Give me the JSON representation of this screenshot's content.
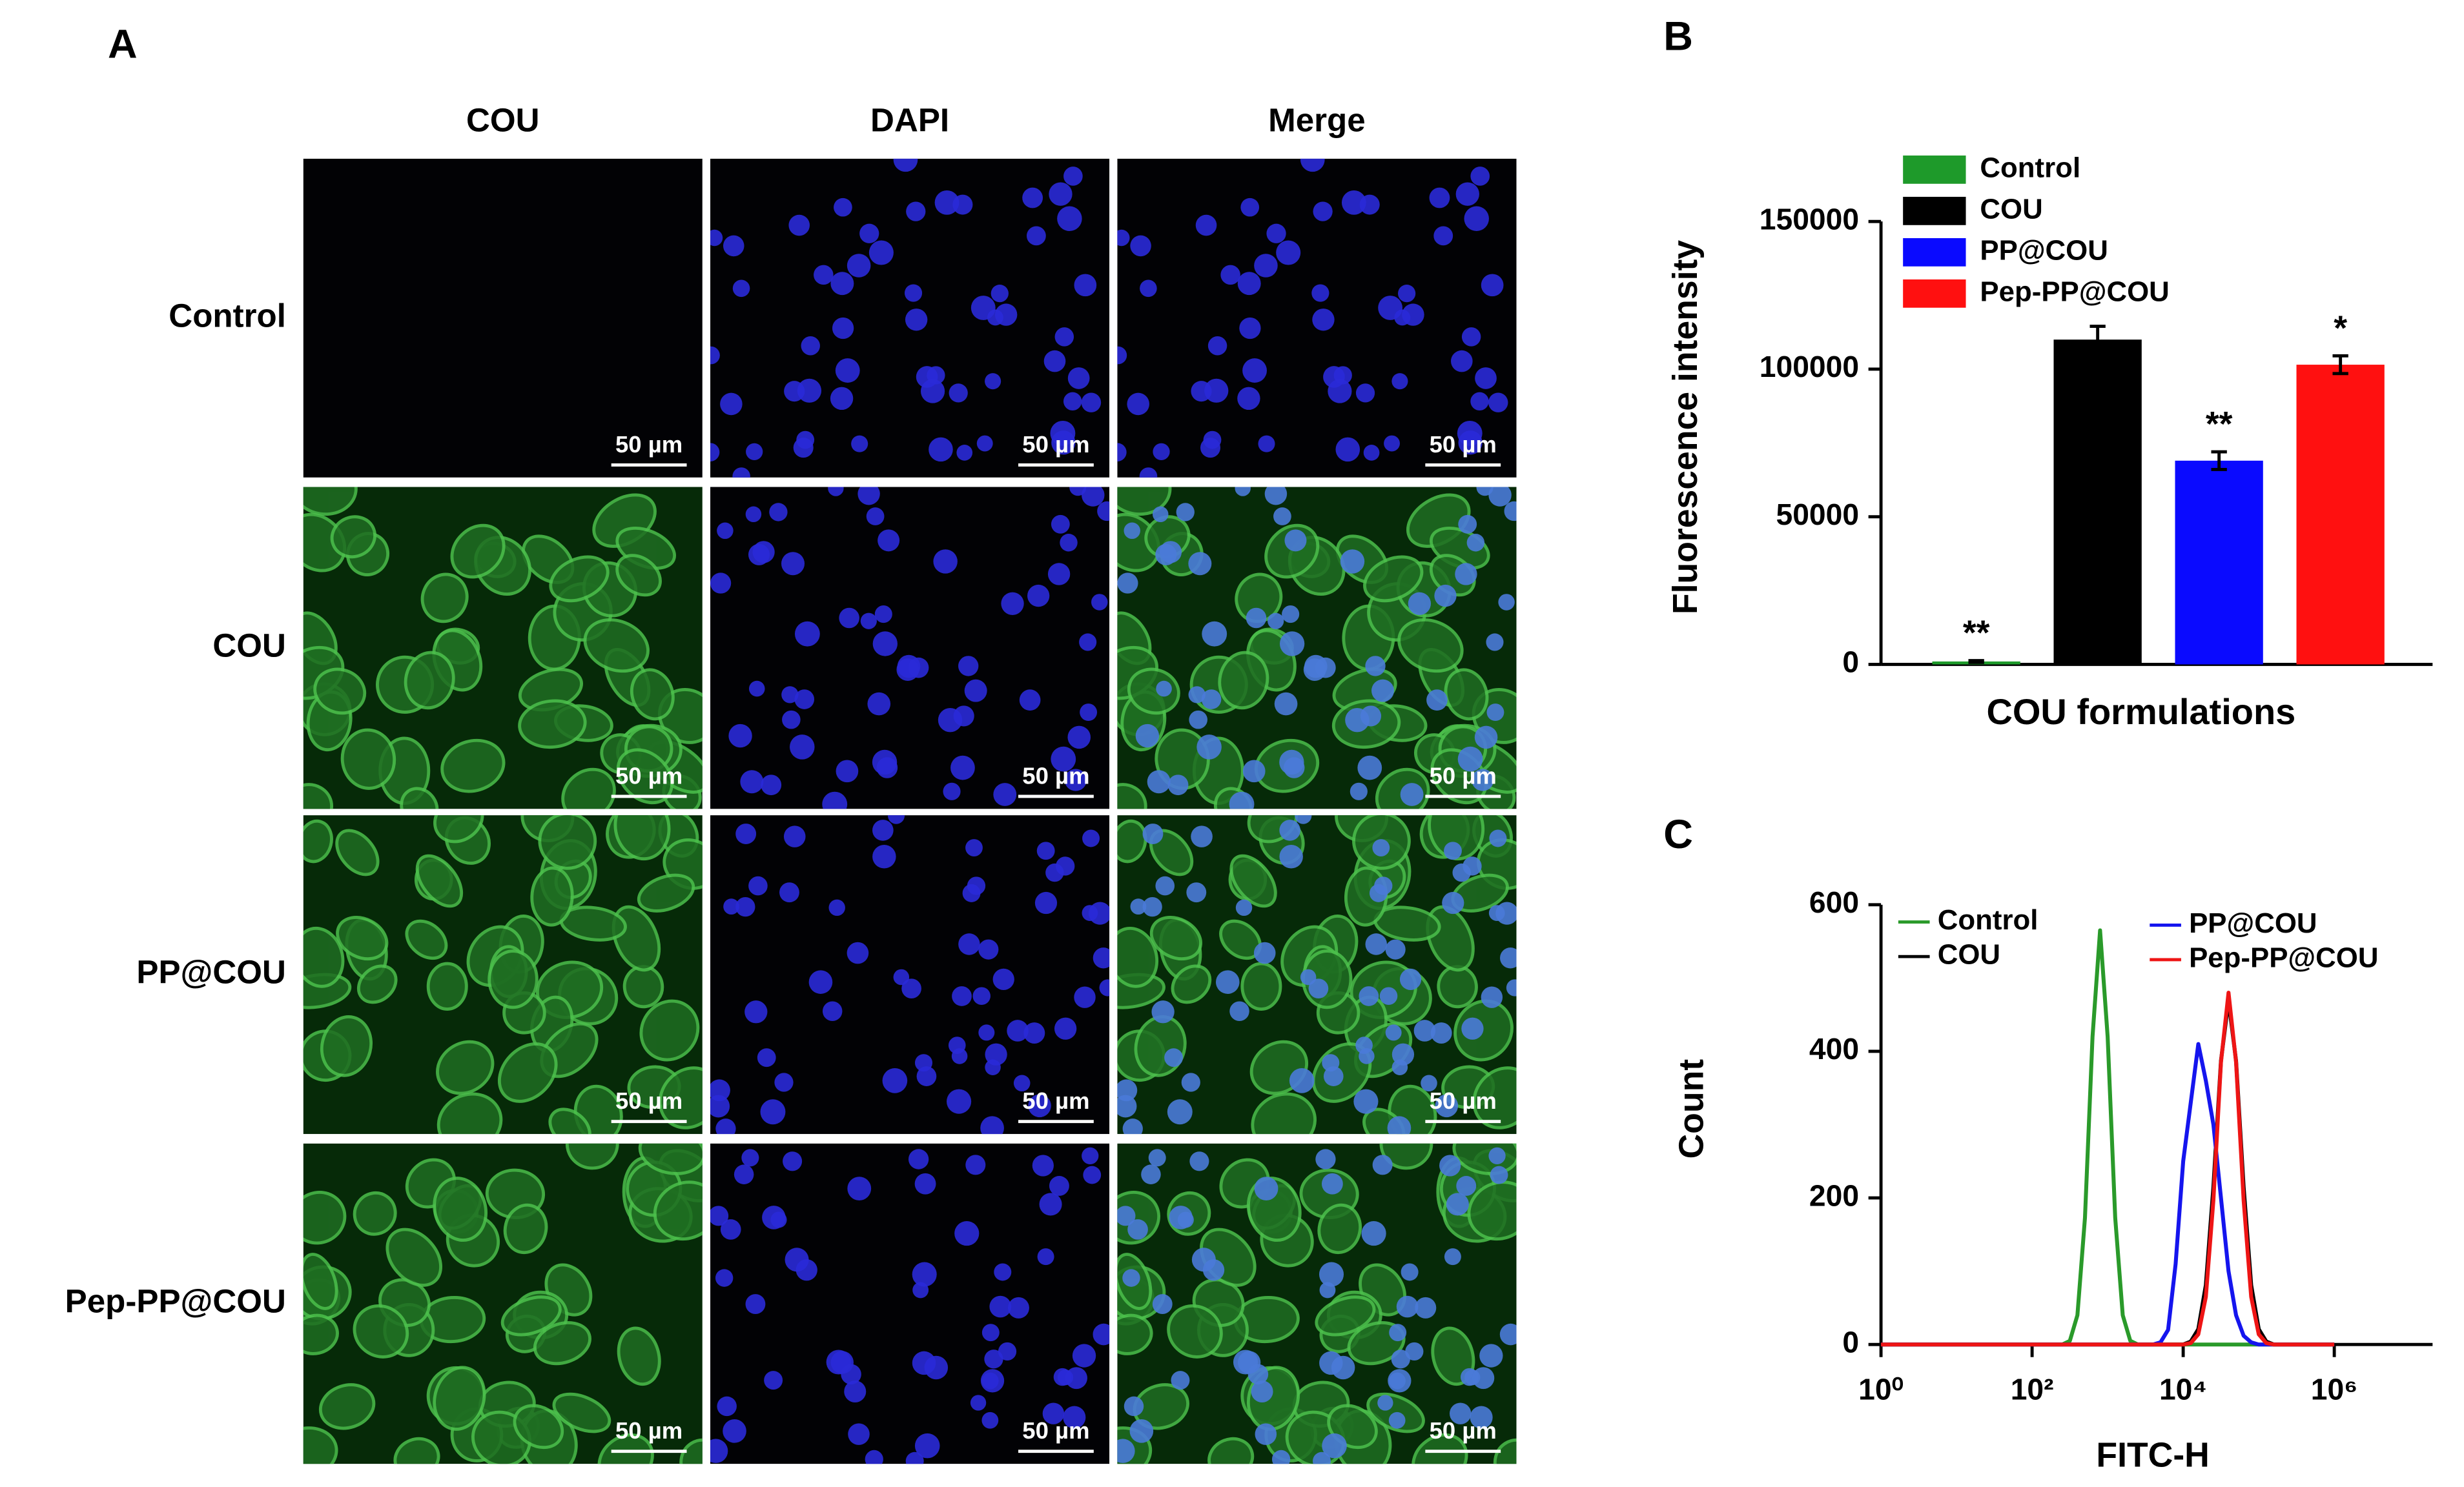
{
  "panel_labels": [
    "A",
    "B",
    "C"
  ],
  "microscopy": {
    "columns": [
      "COU",
      "DAPI",
      "Merge"
    ],
    "rows": [
      "Control",
      "COU",
      "PP@COU",
      "Pep-PP@COU"
    ],
    "scale_bar": "50 µm"
  },
  "chart_data": [
    {
      "type": "bar",
      "ylabel": "Fluorescence intensity",
      "xlabel": "COU formulations",
      "categories": [
        "Control",
        "COU",
        "PP@COU",
        "Pep-PP@COU"
      ],
      "values": [
        1000,
        110000,
        69000,
        101500
      ],
      "errors": [
        300,
        4500,
        3000,
        3000
      ],
      "colors": [
        "#1e9a2a",
        "#000000",
        "#0a0aff",
        "#ff1010"
      ],
      "significance": [
        "**",
        null,
        "**",
        "*"
      ],
      "ylim": [
        0,
        150000
      ],
      "yticks": [
        0,
        50000,
        100000,
        150000
      ],
      "legend": "top-left"
    },
    {
      "type": "line",
      "xlabel": "FITC-H",
      "ylabel": "Count",
      "log_x": true,
      "xlim": [
        1,
        20000000
      ],
      "xticks": [
        {
          "value": 1,
          "label": "10⁰"
        },
        {
          "value": 100,
          "label": "10²"
        },
        {
          "value": 10000,
          "label": "10⁴"
        },
        {
          "value": 1000000,
          "label": "10⁶"
        }
      ],
      "ylim": [
        0,
        600
      ],
      "yticks": [
        0,
        200,
        400,
        600
      ],
      "legend": "top",
      "x": [
        1,
        10,
        100,
        126,
        158,
        200,
        251,
        316,
        398,
        501,
        631,
        794,
        1000,
        1259,
        1585,
        1995,
        2512,
        3162,
        3981,
        5012,
        6310,
        7943,
        10000,
        12589,
        15849,
        19953,
        25119,
        31623,
        39811,
        50119,
        63096,
        79433,
        100000,
        125893,
        158489,
        199526,
        251189,
        398107,
        1000000
      ],
      "series": [
        {
          "name": "Control",
          "color": "#2a9a2a",
          "values": [
            0,
            0,
            0,
            0,
            0,
            0,
            0,
            5,
            40,
            173,
            420,
            565,
            420,
            173,
            40,
            5,
            0,
            0,
            0,
            0,
            0,
            0,
            0,
            0,
            0,
            0,
            0,
            0,
            0,
            0,
            0,
            0,
            0,
            0,
            0,
            0,
            0,
            0,
            0
          ]
        },
        {
          "name": "COU",
          "color": "#000000",
          "values": [
            0,
            0,
            0,
            0,
            0,
            0,
            0,
            0,
            0,
            0,
            0,
            0,
            0,
            0,
            0,
            0,
            0,
            0,
            0,
            0,
            0,
            0,
            0,
            4,
            21,
            81,
            215,
            387,
            470,
            387,
            215,
            81,
            21,
            4,
            0,
            0,
            0,
            0,
            0
          ]
        },
        {
          "name": "PP@COU",
          "color": "#1515ee",
          "values": [
            0,
            0,
            0,
            0,
            0,
            0,
            0,
            0,
            0,
            0,
            0,
            0,
            0,
            0,
            0,
            0,
            0,
            0,
            0,
            3,
            20,
            110,
            250,
            330,
            410,
            360,
            300,
            200,
            100,
            40,
            12,
            3,
            0,
            0,
            0,
            0,
            0,
            0,
            0
          ]
        },
        {
          "name": "Pep-PP@COU",
          "color": "#ee1515",
          "values": [
            0,
            0,
            0,
            0,
            0,
            0,
            0,
            0,
            0,
            0,
            0,
            0,
            0,
            0,
            0,
            0,
            0,
            0,
            0,
            0,
            0,
            0,
            0,
            2,
            14,
            65,
            197,
            385,
            480,
            385,
            197,
            65,
            14,
            2,
            0,
            0,
            0,
            0,
            0
          ]
        }
      ]
    }
  ]
}
